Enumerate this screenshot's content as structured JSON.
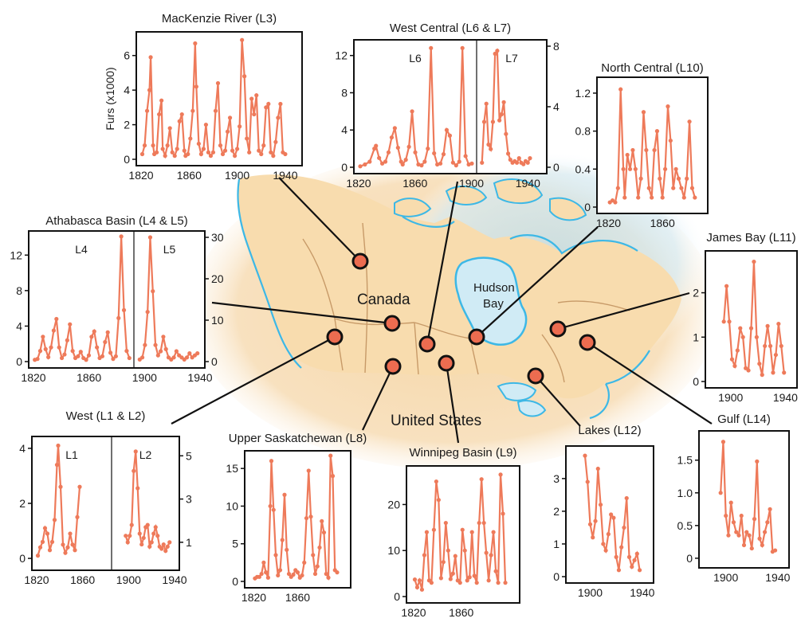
{
  "map": {
    "country_label": "Canada",
    "country2_label": "United States",
    "bay_label_1": "Hudson",
    "bay_label_2": "Bay",
    "land_color": "#f8ddb0",
    "water_color": "#3db8e6",
    "marker_color": "#ec6c50",
    "line_color": "#ee7a5a"
  },
  "chart_data": [
    {
      "type": "line",
      "title": "MacKenzie River (L3)",
      "ylabel": "Furs (x1000)",
      "xlim": [
        1820,
        1950
      ],
      "ylim": [
        0,
        7
      ],
      "xticks": [
        "1820",
        "1860",
        "1900",
        "1940"
      ],
      "yticks": [
        "0",
        "2",
        "4",
        "6"
      ],
      "series": [
        {
          "x": [
            1821,
            1823,
            1825,
            1827,
            1828,
            1830,
            1831,
            1833,
            1835,
            1837,
            1838,
            1840,
            1842,
            1844,
            1846,
            1848,
            1850,
            1852,
            1854,
            1856,
            1857,
            1859,
            1861,
            1863,
            1865,
            1866,
            1868,
            1870,
            1872,
            1874,
            1876,
            1878,
            1880,
            1882,
            1884,
            1886,
            1888,
            1890,
            1892,
            1894,
            1896,
            1898,
            1900,
            1902,
            1904,
            1906,
            1908,
            1910,
            1912,
            1914,
            1916,
            1918,
            1920,
            1922,
            1924,
            1926,
            1928,
            1930,
            1932,
            1934,
            1936,
            1938,
            1940
          ],
          "y": [
            0.3,
            0.8,
            2.8,
            4.0,
            5.9,
            0.8,
            0.3,
            0.4,
            2.6,
            3.4,
            0.6,
            0.2,
            0.8,
            1.8,
            0.4,
            0.2,
            0.6,
            2.2,
            2.6,
            0.5,
            0.2,
            0.3,
            1.2,
            2.8,
            6.7,
            4.2,
            0.9,
            0.3,
            0.6,
            2.0,
            0.4,
            0.2,
            0.4,
            2.8,
            4.4,
            0.8,
            0.3,
            0.5,
            1.6,
            2.4,
            0.5,
            0.2,
            0.6,
            1.9,
            6.9,
            4.8,
            1.2,
            0.4,
            3.5,
            2.6,
            3.7,
            0.5,
            0.3,
            0.8,
            3.0,
            3.2,
            0.4,
            0.2,
            1.0,
            2.4,
            3.2,
            0.4,
            0.3
          ]
        }
      ]
    },
    {
      "type": "line",
      "title": "West Central (L6 & L7)",
      "panel_labels": [
        "L6",
        "L7"
      ],
      "xticks": [
        "1820",
        "1860",
        "1900",
        "1940"
      ],
      "yticks_left": [
        "0",
        "4",
        "8",
        "12"
      ],
      "yticks_right": [
        "0",
        "4",
        "8"
      ],
      "series": [
        {
          "name": "L6",
          "ylim": [
            0,
            13
          ],
          "x": [
            1821,
            1824,
            1827,
            1830,
            1831,
            1833,
            1835,
            1837,
            1839,
            1841,
            1843,
            1845,
            1847,
            1848,
            1850,
            1852,
            1854,
            1856,
            1858,
            1860,
            1862,
            1864,
            1866,
            1868,
            1870,
            1872,
            1874,
            1876,
            1878,
            1880,
            1882,
            1884,
            1886,
            1888,
            1890,
            1892
          ],
          "y": [
            0.1,
            0.3,
            0.6,
            2.0,
            2.3,
            1.0,
            0.4,
            0.6,
            1.6,
            3.2,
            4.2,
            2.1,
            0.6,
            0.3,
            0.8,
            2.2,
            6.0,
            1.6,
            0.3,
            0.2,
            0.6,
            2.0,
            12.8,
            1.5,
            0.3,
            0.4,
            1.4,
            4.0,
            3.4,
            0.5,
            0.2,
            0.6,
            12.8,
            1.2,
            0.3,
            0.4
          ]
        },
        {
          "name": "L7",
          "ylim": [
            0,
            8
          ],
          "x": [
            1895,
            1897,
            1899,
            1901,
            1903,
            1905,
            1907,
            1909,
            1911,
            1913,
            1915,
            1917,
            1919,
            1921,
            1923,
            1925,
            1927,
            1929,
            1931,
            1933,
            1935,
            1937,
            1939
          ],
          "y": [
            0.3,
            3.0,
            4.2,
            1.5,
            1.2,
            3.0,
            7.5,
            7.7,
            3.1,
            3.5,
            4.3,
            2.2,
            0.9,
            0.5,
            0.3,
            0.4,
            0.3,
            0.6,
            0.3,
            0.2,
            0.4,
            0.3,
            0.6
          ]
        }
      ]
    },
    {
      "type": "line",
      "title": "North Central (L10)",
      "xlim": [
        1815,
        1890
      ],
      "ylim": [
        0,
        1.3
      ],
      "xticks": [
        "1820",
        "1860"
      ],
      "yticks": [
        "0",
        "0.4",
        "0.8",
        "1.2"
      ],
      "series": [
        {
          "x": [
            1821,
            1823,
            1825,
            1827,
            1829,
            1831,
            1832,
            1834,
            1836,
            1838,
            1840,
            1842,
            1844,
            1846,
            1848,
            1850,
            1852,
            1854,
            1856,
            1858,
            1860,
            1862,
            1864,
            1866,
            1868,
            1870,
            1872,
            1874,
            1876,
            1878,
            1880,
            1882,
            1884
          ],
          "y": [
            0.05,
            0.07,
            0.05,
            0.2,
            1.24,
            0.4,
            0.1,
            0.55,
            0.4,
            0.6,
            0.4,
            0.1,
            0.3,
            1.0,
            0.6,
            0.2,
            0.1,
            0.6,
            0.8,
            0.3,
            0.1,
            0.4,
            1.06,
            0.7,
            0.2,
            0.4,
            0.3,
            0.2,
            0.1,
            0.3,
            0.9,
            0.2,
            0.1
          ]
        }
      ]
    },
    {
      "type": "line",
      "title": "Athabasca Basin (L4 & L5)",
      "panel_labels": [
        "L4",
        "L5"
      ],
      "xticks": [
        "1820",
        "1860",
        "1900",
        "1940"
      ],
      "yticks_left": [
        "0",
        "4",
        "8",
        "12"
      ],
      "yticks_right": [
        "0",
        "10",
        "20",
        "30"
      ],
      "series": [
        {
          "name": "L4",
          "ylim": [
            0,
            14
          ],
          "x": [
            1821,
            1823,
            1825,
            1827,
            1829,
            1831,
            1833,
            1835,
            1837,
            1839,
            1841,
            1843,
            1845,
            1847,
            1849,
            1851,
            1853,
            1855,
            1857,
            1859,
            1861,
            1863,
            1865,
            1867,
            1869,
            1871,
            1873,
            1875,
            1877,
            1879,
            1881,
            1883,
            1885,
            1887,
            1889,
            1891
          ],
          "y": [
            0.2,
            0.3,
            1.2,
            2.8,
            1.4,
            0.5,
            1.6,
            3.5,
            4.8,
            1.6,
            0.4,
            0.8,
            2.4,
            4.2,
            1.2,
            0.4,
            0.6,
            1.1,
            0.4,
            0.2,
            0.7,
            2.8,
            3.4,
            1.6,
            0.4,
            0.6,
            2.2,
            3.3,
            1.0,
            0.3,
            0.6,
            4.9,
            14.1,
            5.8,
            1.2,
            0.4
          ]
        },
        {
          "name": "L5",
          "ylim": [
            0,
            30
          ],
          "x": [
            1894,
            1896,
            1898,
            1900,
            1902,
            1904,
            1906,
            1908,
            1910,
            1912,
            1914,
            1916,
            1918,
            1920,
            1922,
            1924,
            1926,
            1928,
            1930,
            1932,
            1934,
            1936,
            1938
          ],
          "y": [
            0.5,
            1.0,
            4.0,
            12.0,
            30.0,
            17.0,
            4.0,
            1.5,
            2.5,
            6.0,
            3.0,
            1.0,
            0.5,
            1.0,
            2.5,
            1.5,
            1.0,
            0.5,
            1.0,
            2.0,
            1.0,
            1.5,
            2.0
          ]
        }
      ]
    },
    {
      "type": "line",
      "title": "James Bay (L11)",
      "xlim": [
        1885,
        1945
      ],
      "ylim": [
        0,
        2.8
      ],
      "xticks": [
        "1900",
        "1940"
      ],
      "yticks": [
        "0",
        "1",
        "2"
      ],
      "series": [
        {
          "x": [
            1895,
            1897,
            1899,
            1901,
            1903,
            1905,
            1907,
            1909,
            1911,
            1913,
            1915,
            1917,
            1919,
            1921,
            1923,
            1925,
            1927,
            1929,
            1931,
            1933,
            1935,
            1937,
            1939
          ],
          "y": [
            1.35,
            2.15,
            1.35,
            0.5,
            0.35,
            0.7,
            1.2,
            1.0,
            0.3,
            0.25,
            1.2,
            2.7,
            1.0,
            0.4,
            0.15,
            0.8,
            1.25,
            0.8,
            0.2,
            0.6,
            1.3,
            0.8,
            0.2
          ]
        }
      ]
    },
    {
      "type": "line",
      "title": "West (L1 & L2)",
      "panel_labels": [
        "L1",
        "L2"
      ],
      "xticks": [
        "1820",
        "1860",
        "1900",
        "1940"
      ],
      "yticks_left": [
        "0",
        "2",
        "4"
      ],
      "yticks_right": [
        "1",
        "3",
        "5"
      ],
      "series": [
        {
          "name": "L1",
          "ylim": [
            -0.2,
            4.2
          ],
          "x": [
            1821,
            1823,
            1825,
            1827,
            1829,
            1831,
            1833,
            1835,
            1837,
            1838,
            1840,
            1842,
            1844,
            1846,
            1848,
            1850,
            1852,
            1854,
            1856
          ],
          "y": [
            0.1,
            0.4,
            0.6,
            1.1,
            0.9,
            0.3,
            0.6,
            1.4,
            3.4,
            4.1,
            2.6,
            0.5,
            0.2,
            0.4,
            0.9,
            0.5,
            0.3,
            1.5,
            2.6
          ]
        },
        {
          "name": "L2",
          "ylim": [
            0,
            5.6
          ],
          "x": [
            1891,
            1893,
            1895,
            1897,
            1899,
            1901,
            1903,
            1905,
            1907,
            1909,
            1911,
            1913,
            1915,
            1917,
            1919,
            1921,
            1923,
            1925,
            1927,
            1929,
            1931,
            1933,
            1935
          ],
          "y": [
            1.3,
            1.0,
            1.3,
            1.8,
            4.3,
            5.2,
            3.5,
            1.4,
            0.9,
            1.2,
            1.7,
            1.8,
            0.8,
            1.0,
            1.4,
            1.7,
            1.3,
            0.8,
            0.7,
            0.9,
            0.6,
            0.8,
            1.0
          ]
        }
      ]
    },
    {
      "type": "line",
      "title": "Upper Saskatchewan (L8)",
      "xlim": [
        1816,
        1904
      ],
      "ylim": [
        0,
        16.5
      ],
      "xticks": [
        "1820",
        "1860"
      ],
      "yticks": [
        "0",
        "5",
        "10",
        "15"
      ],
      "series": [
        {
          "x": [
            1821,
            1823,
            1825,
            1827,
            1829,
            1831,
            1833,
            1835,
            1836,
            1838,
            1840,
            1842,
            1844,
            1846,
            1848,
            1850,
            1852,
            1854,
            1856,
            1858,
            1860,
            1862,
            1864,
            1866,
            1868,
            1870,
            1872,
            1874,
            1876,
            1878,
            1880,
            1882,
            1884,
            1886,
            1888,
            1890,
            1892,
            1894,
            1896
          ],
          "y": [
            0.4,
            0.6,
            0.6,
            1.0,
            2.5,
            1.2,
            0.5,
            10.0,
            16.0,
            9.5,
            3.5,
            0.8,
            1.5,
            5.5,
            11.5,
            4.2,
            1.0,
            0.6,
            0.9,
            1.5,
            1.2,
            0.5,
            0.8,
            2.5,
            8.4,
            14.7,
            8.6,
            3.5,
            1.0,
            2.0,
            4.5,
            8.0,
            6.5,
            1.0,
            0.5,
            16.7,
            14.0,
            1.5,
            1.2
          ]
        }
      ]
    },
    {
      "type": "line",
      "title": "Winnipeg Basin (L9)",
      "xlim": [
        1818,
        1905
      ],
      "ylim": [
        0,
        27
      ],
      "xticks": [
        "1820",
        "1860"
      ],
      "yticks": [
        "0",
        "10",
        "20"
      ],
      "series": [
        {
          "x": [
            1821,
            1823,
            1825,
            1827,
            1829,
            1831,
            1833,
            1835,
            1837,
            1839,
            1841,
            1843,
            1845,
            1847,
            1849,
            1851,
            1853,
            1855,
            1857,
            1859,
            1861,
            1863,
            1865,
            1867,
            1869,
            1871,
            1873,
            1875,
            1877,
            1879,
            1881,
            1883,
            1885,
            1887,
            1889,
            1891,
            1893,
            1895,
            1897
          ],
          "y": [
            3.7,
            2.0,
            3.5,
            1.5,
            9.0,
            14.0,
            3.5,
            3.0,
            14.5,
            25.0,
            21.0,
            4.0,
            7.5,
            16.0,
            10.0,
            3.8,
            5.0,
            8.8,
            3.5,
            3.0,
            14.5,
            10.0,
            3.5,
            4.2,
            14.0,
            4.5,
            3.0,
            16.0,
            25.5,
            16.0,
            9.5,
            3.5,
            9.0,
            14.0,
            5.5,
            3.0,
            26.5,
            18.0,
            3.0
          ]
        }
      ]
    },
    {
      "type": "line",
      "title": "Lakes (L12)",
      "xlim": [
        1885,
        1945
      ],
      "ylim": [
        0,
        3.8
      ],
      "xticks": [
        "1900",
        "1940"
      ],
      "yticks": [
        "0",
        "1",
        "2",
        "3"
      ],
      "series": [
        {
          "x": [
            1896,
            1898,
            1900,
            1902,
            1904,
            1906,
            1908,
            1910,
            1912,
            1914,
            1916,
            1918,
            1920,
            1922,
            1924,
            1926,
            1928,
            1930,
            1932,
            1934,
            1936,
            1938
          ],
          "y": [
            3.7,
            2.9,
            1.6,
            1.2,
            1.7,
            3.3,
            2.2,
            1.0,
            0.8,
            1.3,
            1.9,
            1.8,
            0.6,
            0.2,
            0.9,
            1.5,
            2.4,
            0.6,
            0.3,
            0.5,
            0.7,
            0.2
          ]
        }
      ]
    },
    {
      "type": "line",
      "title": "Gulf (L14)",
      "xlim": [
        1883,
        1945
      ],
      "ylim": [
        -0.05,
        1.85
      ],
      "xticks": [
        "1900",
        "1940"
      ],
      "yticks": [
        "0",
        "0.5",
        "1.0",
        "1.5"
      ],
      "series": [
        {
          "x": [
            1896,
            1898,
            1900,
            1902,
            1904,
            1906,
            1908,
            1910,
            1912,
            1914,
            1916,
            1918,
            1920,
            1922,
            1924,
            1926,
            1928,
            1930,
            1932,
            1934,
            1936,
            1938
          ],
          "y": [
            1.0,
            1.78,
            0.65,
            0.35,
            0.85,
            0.55,
            0.4,
            0.35,
            0.65,
            0.2,
            0.4,
            0.35,
            0.15,
            0.6,
            1.48,
            0.3,
            0.2,
            0.4,
            0.55,
            0.75,
            0.1,
            0.12
          ]
        }
      ]
    }
  ]
}
